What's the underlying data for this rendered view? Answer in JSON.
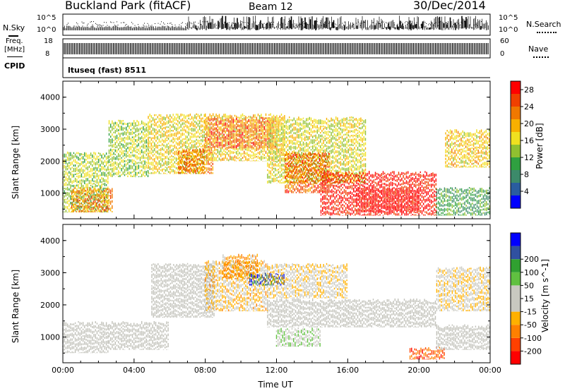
{
  "header": {
    "station": "Buckland Park (fitACF)",
    "beam": "Beam 12",
    "date": "30/Dec/2014"
  },
  "noise_panel": {
    "left_label": "N.Sky",
    "left_tick_top": "10^5",
    "left_tick_bottom": "10^0",
    "right_tick_top": "10^5",
    "right_tick_bottom": "10^0",
    "right_label": "N.Search"
  },
  "freq_panel": {
    "left_label_top": "Freq.",
    "left_label_bottom": "[MHz]",
    "left_tick_top": "18",
    "left_tick_bottom": "8",
    "right_tick_top": "60",
    "right_tick_bottom": "0",
    "right_label": "Nave"
  },
  "cpid_panel": {
    "label": "CPID",
    "text": "ltuseq (fast) 8511"
  },
  "colors": {
    "power_scale": [
      "#0000ff",
      "#2a5d9f",
      "#3c8a6a",
      "#2fa040",
      "#90c030",
      "#f0e020",
      "#f8b000",
      "#f07800",
      "#f04000",
      "#ff0000"
    ],
    "velocity_scale": [
      "#ff0000",
      "#ff4000",
      "#ff8000",
      "#ffb000",
      "#c8c8c0",
      "#c8c8c0",
      "#60c040",
      "#30a030",
      "#3050a0",
      "#0000ff"
    ],
    "ground_scatter": "#c0c0b8"
  },
  "chart_data": [
    {
      "type": "heatmap",
      "name": "power",
      "ylabel": "Slant Range [km]",
      "yticks": [
        "1000",
        "2000",
        "3000",
        "4000"
      ],
      "ylim": [
        200,
        4500
      ],
      "xlim": [
        0,
        24
      ],
      "colorbar_label": "Power [dB]",
      "colorbar_ticks": [
        "4",
        "8",
        "12",
        "16",
        "20",
        "24",
        "28"
      ],
      "colorbar_range": [
        0,
        30
      ],
      "echo_regions": [
        {
          "t": [
            0.0,
            2.6
          ],
          "r": [
            400,
            2300
          ],
          "v": 14
        },
        {
          "t": [
            0.5,
            2.8
          ],
          "r": [
            400,
            1200
          ],
          "v": 22
        },
        {
          "t": [
            2.6,
            4.8
          ],
          "r": [
            1500,
            3300
          ],
          "v": 14
        },
        {
          "t": [
            4.8,
            8.0
          ],
          "r": [
            1600,
            3500
          ],
          "v": 17
        },
        {
          "t": [
            6.5,
            8.5
          ],
          "r": [
            1600,
            2400
          ],
          "v": 23
        },
        {
          "t": [
            8.0,
            12.5
          ],
          "r": [
            2000,
            3500
          ],
          "v": 18
        },
        {
          "t": [
            8.0,
            12.0
          ],
          "r": [
            2400,
            3400
          ],
          "v": 24
        },
        {
          "t": [
            11.5,
            17.0
          ],
          "r": [
            1300,
            3400
          ],
          "v": 16
        },
        {
          "t": [
            12.5,
            15.0
          ],
          "r": [
            1000,
            2300
          ],
          "v": 24
        },
        {
          "t": [
            14.5,
            21.0
          ],
          "r": [
            300,
            1700
          ],
          "v": 28
        },
        {
          "t": [
            16.5,
            20.0
          ],
          "r": [
            400,
            1200
          ],
          "v": 30
        },
        {
          "t": [
            21.0,
            24.0
          ],
          "r": [
            300,
            1200
          ],
          "v": 10
        },
        {
          "t": [
            21.5,
            24.0
          ],
          "r": [
            1800,
            3000
          ],
          "v": 18
        }
      ]
    },
    {
      "type": "heatmap",
      "name": "velocity",
      "xlabel": "Time UT",
      "ylabel": "Slant Range [km]",
      "xticks": [
        "00:00",
        "04:00",
        "08:00",
        "12:00",
        "16:00",
        "20:00",
        "00:00"
      ],
      "yticks": [
        "1000",
        "2000",
        "3000",
        "4000"
      ],
      "ylim": [
        200,
        4500
      ],
      "xlim": [
        0,
        24
      ],
      "colorbar_label": "Velocity [m s^-1]",
      "colorbar_ticks": [
        "-200",
        "-100",
        "-50",
        "-15",
        "15",
        "50",
        "100",
        "200"
      ],
      "colorbar_range": [
        -250,
        250
      ],
      "echo_regions": [
        {
          "t": [
            0.0,
            2.6
          ],
          "r": [
            500,
            1500
          ],
          "v": 0,
          "gs": true
        },
        {
          "t": [
            2.6,
            6.0
          ],
          "r": [
            600,
            1500
          ],
          "v": 0,
          "gs": true
        },
        {
          "t": [
            5.0,
            8.5
          ],
          "r": [
            1600,
            3300
          ],
          "v": 0,
          "gs": true
        },
        {
          "t": [
            8.0,
            11.5
          ],
          "r": [
            1800,
            3400
          ],
          "v": -60
        },
        {
          "t": [
            9.0,
            11.0
          ],
          "r": [
            2800,
            3600
          ],
          "v": -90
        },
        {
          "t": [
            10.5,
            12.5
          ],
          "r": [
            2600,
            3000
          ],
          "v": 180
        },
        {
          "t": [
            11.5,
            21.0
          ],
          "r": [
            1300,
            2200
          ],
          "v": 0,
          "gs": true
        },
        {
          "t": [
            11.5,
            16.0
          ],
          "r": [
            2200,
            3300
          ],
          "v": -40
        },
        {
          "t": [
            12.0,
            14.5
          ],
          "r": [
            700,
            1300
          ],
          "v": 40
        },
        {
          "t": [
            19.5,
            21.5
          ],
          "r": [
            300,
            700
          ],
          "v": -160
        },
        {
          "t": [
            21.0,
            24.0
          ],
          "r": [
            600,
            1400
          ],
          "v": 0,
          "gs": true
        },
        {
          "t": [
            21.0,
            24.0
          ],
          "r": [
            1800,
            3200
          ],
          "v": -40
        }
      ]
    }
  ]
}
